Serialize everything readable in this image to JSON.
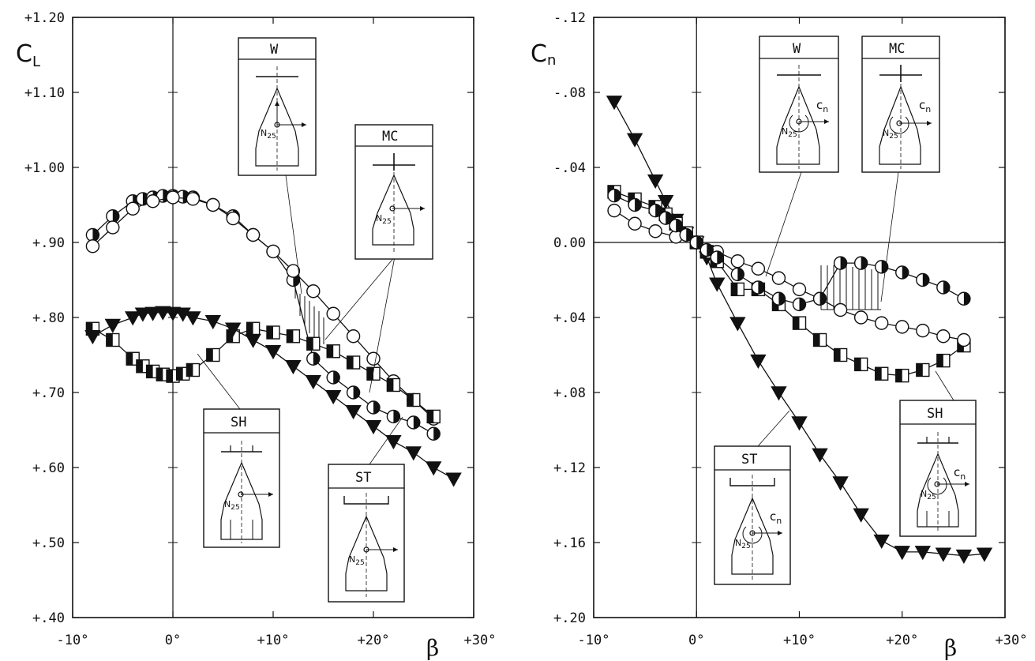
{
  "chart_data": [
    {
      "type": "line",
      "ylabel": "C",
      "ylabel_sub": "L",
      "xlabel": "β",
      "xlim": [
        -10,
        30
      ],
      "ylim": [
        0.4,
        1.2
      ],
      "x_ticks": [
        "-10°",
        "0°",
        "+10°",
        "+20°",
        "+30°"
      ],
      "y_ticks": [
        "+1.20",
        "+1.10",
        "+1.00",
        "+.90",
        "+.80",
        "+.70",
        "+.60",
        "+.50",
        "+.40"
      ],
      "series": [
        {
          "marker": "circle-half",
          "x": [
            -8,
            -6,
            -4,
            -3,
            -2,
            -1,
            0,
            1,
            2,
            4,
            6,
            8,
            10,
            12,
            14,
            16,
            18,
            20,
            22,
            24,
            26
          ],
          "y": [
            0.91,
            0.935,
            0.955,
            0.958,
            0.96,
            0.962,
            0.962,
            0.961,
            0.96,
            0.95,
            0.935,
            0.91,
            0.888,
            0.85,
            0.745,
            0.72,
            0.7,
            0.68,
            0.668,
            0.66,
            0.645
          ]
        },
        {
          "marker": "circle-open",
          "x": [
            -8,
            -6,
            -4,
            -2,
            0,
            2,
            4,
            6,
            8,
            10,
            12,
            14,
            16,
            18,
            20,
            22,
            24,
            26
          ],
          "y": [
            0.895,
            0.92,
            0.945,
            0.955,
            0.96,
            0.958,
            0.95,
            0.932,
            0.91,
            0.888,
            0.862,
            0.835,
            0.805,
            0.775,
            0.745,
            0.715,
            0.69,
            0.665
          ]
        },
        {
          "marker": "square-half",
          "x": [
            -8,
            -6,
            -4,
            -3,
            -2,
            -1,
            0,
            1,
            2,
            4,
            6,
            8,
            10,
            12,
            14,
            16,
            18,
            20,
            22,
            24,
            26
          ],
          "y": [
            0.785,
            0.77,
            0.745,
            0.735,
            0.728,
            0.724,
            0.722,
            0.725,
            0.73,
            0.75,
            0.775,
            0.785,
            0.78,
            0.775,
            0.765,
            0.755,
            0.74,
            0.725,
            0.71,
            0.69,
            0.668
          ]
        },
        {
          "marker": "triangle-filled",
          "x": [
            -8,
            -6,
            -4,
            -3,
            -2,
            -1,
            0,
            1,
            2,
            4,
            6,
            8,
            10,
            12,
            14,
            16,
            18,
            20,
            22,
            24,
            26,
            28
          ],
          "y": [
            0.775,
            0.79,
            0.8,
            0.805,
            0.806,
            0.807,
            0.806,
            0.805,
            0.8,
            0.795,
            0.785,
            0.77,
            0.755,
            0.735,
            0.715,
            0.695,
            0.675,
            0.655,
            0.635,
            0.62,
            0.6,
            0.585
          ]
        }
      ]
    },
    {
      "type": "line",
      "ylabel": "C",
      "ylabel_sub": "n",
      "xlabel": "β",
      "xlim": [
        -10,
        30
      ],
      "ylim": [
        -0.12,
        0.2
      ],
      "x_ticks": [
        "-10°",
        "0°",
        "+10°",
        "+20°",
        "+30°"
      ],
      "y_ticks": [
        "-.12",
        "-.08",
        "-.04",
        "0.00",
        "+.04",
        "+.08",
        "+.12",
        "+.16",
        "+.20"
      ],
      "series": [
        {
          "marker": "triangle-filled",
          "x": [
            -8,
            -6,
            -4,
            -3,
            -2,
            -1,
            0,
            1,
            2,
            4,
            6,
            8,
            10,
            12,
            14,
            16,
            18,
            20,
            22,
            24,
            26,
            28
          ],
          "y": [
            -0.075,
            -0.055,
            -0.033,
            -0.022,
            -0.012,
            -0.005,
            0.0,
            0.008,
            0.022,
            0.043,
            0.063,
            0.08,
            0.096,
            0.113,
            0.128,
            0.145,
            0.159,
            0.165,
            0.165,
            0.166,
            0.167,
            0.166
          ]
        },
        {
          "marker": "square-half",
          "x": [
            -8,
            -6,
            -4,
            -3,
            -2,
            -1,
            0,
            1,
            2,
            4,
            6,
            8,
            10,
            12,
            14,
            16,
            18,
            20,
            22,
            24,
            26
          ],
          "y": [
            -0.027,
            -0.023,
            -0.019,
            -0.015,
            -0.01,
            -0.005,
            0.0,
            0.005,
            0.01,
            0.025,
            0.025,
            0.033,
            0.043,
            0.052,
            0.06,
            0.065,
            0.07,
            0.071,
            0.068,
            0.063,
            0.055
          ]
        },
        {
          "marker": "circle-open",
          "x": [
            -8,
            -6,
            -4,
            -2,
            0,
            2,
            4,
            6,
            8,
            10,
            12,
            14,
            16,
            18,
            20,
            22,
            24,
            26
          ],
          "y": [
            -0.017,
            -0.01,
            -0.006,
            -0.003,
            0.0,
            0.005,
            0.01,
            0.014,
            0.019,
            0.025,
            0.03,
            0.036,
            0.04,
            0.043,
            0.045,
            0.047,
            0.05,
            0.052
          ]
        },
        {
          "marker": "circle-half",
          "x": [
            -8,
            -6,
            -4,
            -3,
            -2,
            -1,
            0,
            1,
            2,
            4,
            6,
            8,
            10,
            12,
            14,
            16,
            18,
            20,
            22,
            24,
            26
          ],
          "y": [
            -0.025,
            -0.02,
            -0.017,
            -0.013,
            -0.009,
            -0.004,
            0.0,
            0.004,
            0.008,
            0.017,
            0.024,
            0.03,
            0.033,
            0.03,
            0.011,
            0.011,
            0.013,
            0.016,
            0.02,
            0.024,
            0.03
          ]
        }
      ]
    }
  ],
  "insets": {
    "w": "W",
    "mc": "MC",
    "sh": "SH",
    "st": "ST",
    "n25": "N",
    "n25_sub": "25",
    "cn": "c",
    "cn_sub": "n"
  }
}
